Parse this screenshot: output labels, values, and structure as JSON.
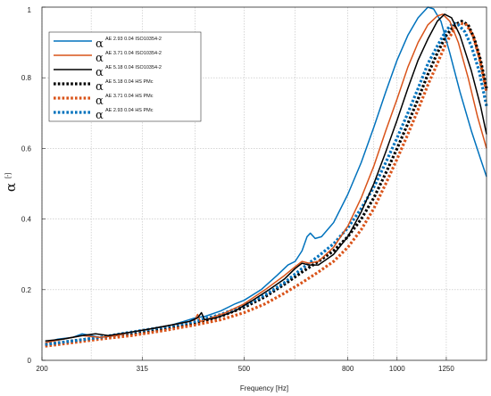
{
  "chart_data": {
    "type": "line",
    "xlabel": "Frequency [Hz]",
    "ylabel": "α",
    "ylabel_unit": "[-]",
    "x_scale": "log",
    "xlim": [
      200,
      1500
    ],
    "ylim": [
      0,
      1
    ],
    "grid": true,
    "legend_position": "top-left",
    "x_ticks": [
      200,
      315,
      500,
      800,
      1000,
      1250
    ],
    "x_minor_gridlines": [
      250,
      400,
      630,
      900
    ],
    "y_ticks": [
      0,
      0.2,
      0.4,
      0.6,
      0.8,
      1
    ],
    "y_tick_labels": [
      "0",
      "0.2",
      "0.4",
      "0.6",
      "0.8",
      "1"
    ],
    "series": [
      {
        "name": "AE 2.93 0.04 ISO10354-2",
        "symbol": "α",
        "color": "#0072bd",
        "dash": "solid",
        "points": [
          [
            203,
            0.05
          ],
          [
            215,
            0.06
          ],
          [
            230,
            0.065
          ],
          [
            240,
            0.075
          ],
          [
            250,
            0.07
          ],
          [
            260,
            0.065
          ],
          [
            280,
            0.07
          ],
          [
            300,
            0.08
          ],
          [
            330,
            0.09
          ],
          [
            360,
            0.1
          ],
          [
            380,
            0.11
          ],
          [
            400,
            0.12
          ],
          [
            420,
            0.125
          ],
          [
            450,
            0.14
          ],
          [
            480,
            0.16
          ],
          [
            500,
            0.17
          ],
          [
            540,
            0.2
          ],
          [
            580,
            0.24
          ],
          [
            610,
            0.27
          ],
          [
            630,
            0.28
          ],
          [
            650,
            0.31
          ],
          [
            665,
            0.35
          ],
          [
            675,
            0.36
          ],
          [
            690,
            0.345
          ],
          [
            710,
            0.35
          ],
          [
            750,
            0.39
          ],
          [
            800,
            0.47
          ],
          [
            850,
            0.56
          ],
          [
            900,
            0.66
          ],
          [
            950,
            0.76
          ],
          [
            1000,
            0.85
          ],
          [
            1050,
            0.92
          ],
          [
            1100,
            0.97
          ],
          [
            1150,
            1.0
          ],
          [
            1180,
            0.995
          ],
          [
            1220,
            0.96
          ],
          [
            1270,
            0.87
          ],
          [
            1330,
            0.76
          ],
          [
            1400,
            0.65
          ],
          [
            1460,
            0.57
          ],
          [
            1500,
            0.52
          ]
        ]
      },
      {
        "name": "AE 3.71 0.04 ISO10354-2",
        "symbol": "α",
        "color": "#d95319",
        "dash": "solid",
        "points": [
          [
            203,
            0.05
          ],
          [
            220,
            0.06
          ],
          [
            240,
            0.07
          ],
          [
            260,
            0.065
          ],
          [
            280,
            0.07
          ],
          [
            300,
            0.08
          ],
          [
            330,
            0.09
          ],
          [
            360,
            0.1
          ],
          [
            390,
            0.11
          ],
          [
            400,
            0.115
          ],
          [
            405,
            0.13
          ],
          [
            410,
            0.11
          ],
          [
            430,
            0.12
          ],
          [
            460,
            0.135
          ],
          [
            500,
            0.16
          ],
          [
            550,
            0.2
          ],
          [
            600,
            0.24
          ],
          [
            630,
            0.265
          ],
          [
            650,
            0.28
          ],
          [
            670,
            0.275
          ],
          [
            700,
            0.28
          ],
          [
            750,
            0.32
          ],
          [
            800,
            0.38
          ],
          [
            850,
            0.46
          ],
          [
            900,
            0.55
          ],
          [
            950,
            0.65
          ],
          [
            1000,
            0.74
          ],
          [
            1050,
            0.83
          ],
          [
            1100,
            0.9
          ],
          [
            1150,
            0.95
          ],
          [
            1200,
            0.975
          ],
          [
            1230,
            0.98
          ],
          [
            1270,
            0.96
          ],
          [
            1320,
            0.9
          ],
          [
            1380,
            0.8
          ],
          [
            1440,
            0.69
          ],
          [
            1500,
            0.6
          ]
        ]
      },
      {
        "name": "AE 5.18 0.04 ISO10354-2",
        "symbol": "α",
        "color": "#000000",
        "dash": "solid",
        "points": [
          [
            203,
            0.055
          ],
          [
            220,
            0.06
          ],
          [
            240,
            0.07
          ],
          [
            255,
            0.075
          ],
          [
            270,
            0.07
          ],
          [
            300,
            0.08
          ],
          [
            330,
            0.09
          ],
          [
            360,
            0.1
          ],
          [
            390,
            0.11
          ],
          [
            405,
            0.12
          ],
          [
            412,
            0.135
          ],
          [
            418,
            0.115
          ],
          [
            440,
            0.12
          ],
          [
            480,
            0.14
          ],
          [
            520,
            0.17
          ],
          [
            560,
            0.2
          ],
          [
            600,
            0.23
          ],
          [
            630,
            0.26
          ],
          [
            650,
            0.275
          ],
          [
            670,
            0.27
          ],
          [
            700,
            0.27
          ],
          [
            750,
            0.3
          ],
          [
            800,
            0.35
          ],
          [
            850,
            0.42
          ],
          [
            900,
            0.5
          ],
          [
            950,
            0.59
          ],
          [
            1000,
            0.68
          ],
          [
            1050,
            0.77
          ],
          [
            1100,
            0.85
          ],
          [
            1150,
            0.91
          ],
          [
            1200,
            0.96
          ],
          [
            1240,
            0.98
          ],
          [
            1280,
            0.97
          ],
          [
            1330,
            0.92
          ],
          [
            1400,
            0.82
          ],
          [
            1460,
            0.72
          ],
          [
            1500,
            0.64
          ]
        ]
      },
      {
        "name": "AE 5.18 0.04 HS PMc",
        "symbol": "α",
        "color": "#000000",
        "dash": "dotted",
        "points": [
          [
            203,
            0.045
          ],
          [
            230,
            0.055
          ],
          [
            260,
            0.065
          ],
          [
            300,
            0.075
          ],
          [
            350,
            0.09
          ],
          [
            400,
            0.105
          ],
          [
            450,
            0.125
          ],
          [
            500,
            0.15
          ],
          [
            550,
            0.18
          ],
          [
            600,
            0.215
          ],
          [
            650,
            0.25
          ],
          [
            700,
            0.28
          ],
          [
            750,
            0.31
          ],
          [
            800,
            0.35
          ],
          [
            850,
            0.4
          ],
          [
            900,
            0.46
          ],
          [
            950,
            0.53
          ],
          [
            1000,
            0.6
          ],
          [
            1050,
            0.67
          ],
          [
            1100,
            0.74
          ],
          [
            1150,
            0.81
          ],
          [
            1200,
            0.87
          ],
          [
            1250,
            0.92
          ],
          [
            1300,
            0.95
          ],
          [
            1340,
            0.96
          ],
          [
            1380,
            0.95
          ],
          [
            1420,
            0.91
          ],
          [
            1460,
            0.85
          ],
          [
            1500,
            0.77
          ]
        ]
      },
      {
        "name": "AE 3.71 0.04 HS PMc",
        "symbol": "α",
        "color": "#d95319",
        "dash": "dotted",
        "points": [
          [
            203,
            0.04
          ],
          [
            230,
            0.05
          ],
          [
            260,
            0.06
          ],
          [
            300,
            0.07
          ],
          [
            350,
            0.085
          ],
          [
            400,
            0.1
          ],
          [
            450,
            0.115
          ],
          [
            500,
            0.135
          ],
          [
            550,
            0.16
          ],
          [
            600,
            0.19
          ],
          [
            650,
            0.22
          ],
          [
            700,
            0.25
          ],
          [
            750,
            0.28
          ],
          [
            800,
            0.32
          ],
          [
            850,
            0.37
          ],
          [
            900,
            0.43
          ],
          [
            950,
            0.5
          ],
          [
            1000,
            0.57
          ],
          [
            1050,
            0.64
          ],
          [
            1100,
            0.71
          ],
          [
            1150,
            0.78
          ],
          [
            1200,
            0.84
          ],
          [
            1250,
            0.9
          ],
          [
            1300,
            0.94
          ],
          [
            1330,
            0.955
          ],
          [
            1370,
            0.95
          ],
          [
            1410,
            0.92
          ],
          [
            1450,
            0.86
          ],
          [
            1500,
            0.76
          ]
        ]
      },
      {
        "name": "AE 2.93 0.04 HS PMc",
        "symbol": "α",
        "color": "#0072bd",
        "dash": "dotted",
        "points": [
          [
            203,
            0.045
          ],
          [
            230,
            0.055
          ],
          [
            260,
            0.065
          ],
          [
            300,
            0.08
          ],
          [
            350,
            0.095
          ],
          [
            400,
            0.11
          ],
          [
            450,
            0.13
          ],
          [
            500,
            0.155
          ],
          [
            550,
            0.185
          ],
          [
            600,
            0.22
          ],
          [
            650,
            0.26
          ],
          [
            700,
            0.295
          ],
          [
            750,
            0.33
          ],
          [
            800,
            0.375
          ],
          [
            850,
            0.43
          ],
          [
            900,
            0.49
          ],
          [
            950,
            0.56
          ],
          [
            1000,
            0.63
          ],
          [
            1050,
            0.7
          ],
          [
            1100,
            0.77
          ],
          [
            1150,
            0.84
          ],
          [
            1200,
            0.89
          ],
          [
            1250,
            0.935
          ],
          [
            1290,
            0.955
          ],
          [
            1320,
            0.95
          ],
          [
            1360,
            0.93
          ],
          [
            1400,
            0.89
          ],
          [
            1450,
            0.82
          ],
          [
            1500,
            0.72
          ]
        ]
      }
    ]
  }
}
